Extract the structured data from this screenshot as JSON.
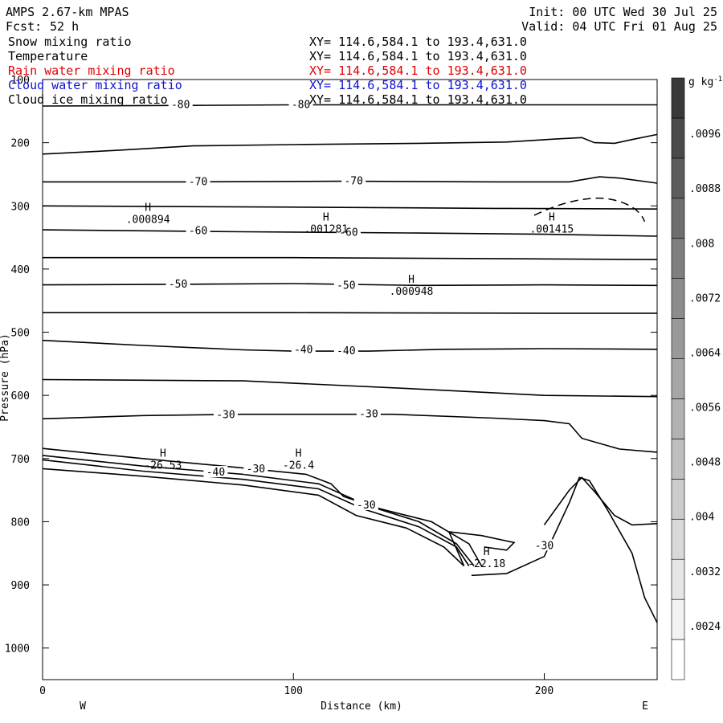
{
  "header": {
    "model": "AMPS 2.67-km MPAS",
    "fcst_label": "Fcst:",
    "fcst_value": "52 h",
    "init": "Init: 00 UTC Wed 30 Jul 25",
    "valid": "Valid: 04 UTC Fri 01 Aug 25"
  },
  "legend": [
    {
      "name": "Snow mixing ratio",
      "xy": "XY= 114.6,584.1 to 193.4,631.0",
      "color": "#000000"
    },
    {
      "name": "Temperature",
      "xy": "XY= 114.6,584.1 to 193.4,631.0",
      "color": "#000000"
    },
    {
      "name": "Rain water mixing ratio",
      "xy": "XY= 114.6,584.1 to 193.4,631.0",
      "color": "#e00000"
    },
    {
      "name": "Cloud water mixing ratio",
      "xy": "XY= 114.6,584.1 to 193.4,631.0",
      "color": "#1010d0"
    },
    {
      "name": "Cloud ice mixing ratio",
      "xy": "XY= 114.6,584.1 to 193.4,631.0",
      "color": "#000000"
    }
  ],
  "chart_data": {
    "type": "line",
    "xlabel": "Distance (km)",
    "ylabel": "Pressure (hPa)",
    "xlim": [
      0,
      245
    ],
    "ylim": [
      1050,
      100
    ],
    "x_ticks": [
      0,
      100,
      200
    ],
    "y_ticks": [
      100,
      200,
      300,
      400,
      500,
      600,
      700,
      800,
      900,
      1000
    ],
    "x_end_labels": {
      "left": "W",
      "right": "E"
    },
    "colorbar": {
      "unit": "g kg",
      "unit_exp": "-1",
      "labels": [
        ".0024",
        ".0032",
        ".004",
        ".0048",
        ".0056",
        ".0064",
        ".0072",
        ".008",
        ".0088",
        ".0096"
      ],
      "colors": [
        "#ffffff",
        "#f2f2f2",
        "#e6e6e6",
        "#d9d9d9",
        "#cccccc",
        "#bfbfbf",
        "#b2b2b2",
        "#a6a6a6",
        "#999999",
        "#8c8c8c",
        "#7f7f7f",
        "#6e6e6e",
        "#5c5c5c",
        "#4a4a4a",
        "#3a3a3a"
      ]
    },
    "isotherms": [
      {
        "points": [
          [
            0,
            142
          ],
          [
            60,
            141
          ],
          [
            100,
            140
          ],
          [
            150,
            140
          ],
          [
            200,
            140
          ],
          [
            245,
            140
          ]
        ]
      },
      {
        "points": [
          [
            0,
            218
          ],
          [
            30,
            212
          ],
          [
            60,
            205
          ],
          [
            100,
            203
          ],
          [
            150,
            201
          ],
          [
            185,
            199
          ],
          [
            205,
            194
          ],
          [
            215,
            192
          ],
          [
            220,
            200
          ],
          [
            228,
            201
          ],
          [
            235,
            195
          ],
          [
            245,
            187
          ]
        ]
      },
      {
        "points": [
          [
            0,
            262
          ],
          [
            60,
            262
          ],
          [
            120,
            261
          ],
          [
            180,
            262
          ],
          [
            210,
            262
          ],
          [
            222,
            254
          ],
          [
            230,
            256
          ],
          [
            245,
            264
          ]
        ]
      },
      {
        "points": [
          [
            0,
            300
          ],
          [
            100,
            302
          ],
          [
            180,
            304
          ],
          [
            245,
            305
          ]
        ]
      },
      {
        "points": [
          [
            0,
            338
          ],
          [
            80,
            341
          ],
          [
            150,
            343
          ],
          [
            200,
            345
          ],
          [
            245,
            348
          ]
        ]
      },
      {
        "points": [
          [
            0,
            382
          ],
          [
            100,
            382
          ],
          [
            200,
            384
          ],
          [
            245,
            385
          ]
        ]
      },
      {
        "points": [
          [
            0,
            425
          ],
          [
            60,
            424
          ],
          [
            100,
            423
          ],
          [
            150,
            426
          ],
          [
            200,
            425
          ],
          [
            245,
            426
          ]
        ]
      },
      {
        "points": [
          [
            0,
            469
          ],
          [
            100,
            469
          ],
          [
            200,
            470
          ],
          [
            245,
            470
          ]
        ]
      },
      {
        "points": [
          [
            0,
            513
          ],
          [
            40,
            521
          ],
          [
            80,
            528
          ],
          [
            100,
            530
          ],
          [
            130,
            530
          ],
          [
            160,
            527
          ],
          [
            200,
            526
          ],
          [
            245,
            527
          ]
        ]
      },
      {
        "points": [
          [
            0,
            575
          ],
          [
            80,
            577
          ],
          [
            150,
            590
          ],
          [
            200,
            600
          ],
          [
            245,
            602
          ]
        ]
      },
      {
        "points": [
          [
            0,
            637
          ],
          [
            40,
            632
          ],
          [
            80,
            630
          ],
          [
            140,
            630
          ],
          [
            180,
            636
          ],
          [
            200,
            640
          ],
          [
            210,
            645
          ],
          [
            215,
            668
          ],
          [
            230,
            685
          ],
          [
            245,
            690
          ]
        ]
      },
      {
        "points": [
          [
            0,
            684
          ],
          [
            40,
            700
          ],
          [
            80,
            715
          ],
          [
            105,
            725
          ],
          [
            115,
            740
          ],
          [
            120,
            760
          ],
          [
            135,
            780
          ],
          [
            155,
            800
          ],
          [
            170,
            835
          ],
          [
            175,
            870
          ]
        ]
      },
      {
        "points": [
          [
            0,
            695
          ],
          [
            40,
            712
          ],
          [
            80,
            725
          ],
          [
            110,
            740
          ],
          [
            130,
            775
          ],
          [
            150,
            800
          ],
          [
            165,
            835
          ],
          [
            172,
            870
          ]
        ]
      },
      {
        "points": [
          [
            0,
            702
          ],
          [
            40,
            720
          ],
          [
            80,
            733
          ],
          [
            110,
            748
          ],
          [
            128,
            780
          ],
          [
            150,
            808
          ],
          [
            165,
            840
          ],
          [
            170,
            870
          ]
        ]
      },
      {
        "points": [
          [
            0,
            716
          ],
          [
            40,
            728
          ],
          [
            80,
            742
          ],
          [
            110,
            758
          ],
          [
            125,
            790
          ],
          [
            145,
            810
          ],
          [
            160,
            840
          ],
          [
            168,
            870
          ]
        ]
      },
      {
        "points": [
          [
            200,
            805
          ],
          [
            210,
            750
          ],
          [
            215,
            730
          ],
          [
            220,
            752
          ],
          [
            228,
            790
          ],
          [
            235,
            805
          ],
          [
            245,
            803
          ]
        ]
      },
      {
        "points": [
          [
            171,
            885
          ],
          [
            185,
            882
          ],
          [
            200,
            855
          ],
          [
            210,
            770
          ],
          [
            214,
            730
          ],
          [
            218,
            735
          ],
          [
            225,
            780
          ],
          [
            235,
            850
          ],
          [
            240,
            920
          ],
          [
            245,
            960
          ]
        ]
      }
    ],
    "labels": [
      {
        "text": "-80",
        "x": 55,
        "p": 140
      },
      {
        "text": "-80",
        "x": 103,
        "p": 140
      },
      {
        "text": "-70",
        "x": 62,
        "p": 262
      },
      {
        "text": "-70",
        "x": 124,
        "p": 261
      },
      {
        "text": "-60",
        "x": 62,
        "p": 340
      },
      {
        "text": "-60",
        "x": 122,
        "p": 342
      },
      {
        "text": "-50",
        "x": 54,
        "p": 424
      },
      {
        "text": "-50",
        "x": 121,
        "p": 426
      },
      {
        "text": "-40",
        "x": 104,
        "p": 528
      },
      {
        "text": "-40",
        "x": 121,
        "p": 530
      },
      {
        "text": "-30",
        "x": 73,
        "p": 631
      },
      {
        "text": "-30",
        "x": 130,
        "p": 630
      },
      {
        "text": "-40",
        "x": 69,
        "p": 722
      },
      {
        "text": "-30",
        "x": 85,
        "p": 717
      },
      {
        "text": "-30",
        "x": 129,
        "p": 774
      },
      {
        "text": "-30",
        "x": 200,
        "p": 838
      }
    ],
    "highs": [
      {
        "mark": "H",
        "value": ".000894",
        "x": 42,
        "p": 313
      },
      {
        "mark": "H",
        "value": ".001281",
        "x": 113,
        "p": 328
      },
      {
        "mark": "H",
        "value": ".001415",
        "x": 203,
        "p": 328
      },
      {
        "mark": "H",
        "value": ".000948",
        "x": 147,
        "p": 427
      },
      {
        "mark": "H",
        "value": "-26.53",
        "x": 48,
        "p": 702
      },
      {
        "mark": "H",
        "value": "-26.4",
        "x": 102,
        "p": 702
      },
      {
        "mark": "H",
        "value": "-22.18",
        "x": 177,
        "p": 858
      }
    ]
  }
}
